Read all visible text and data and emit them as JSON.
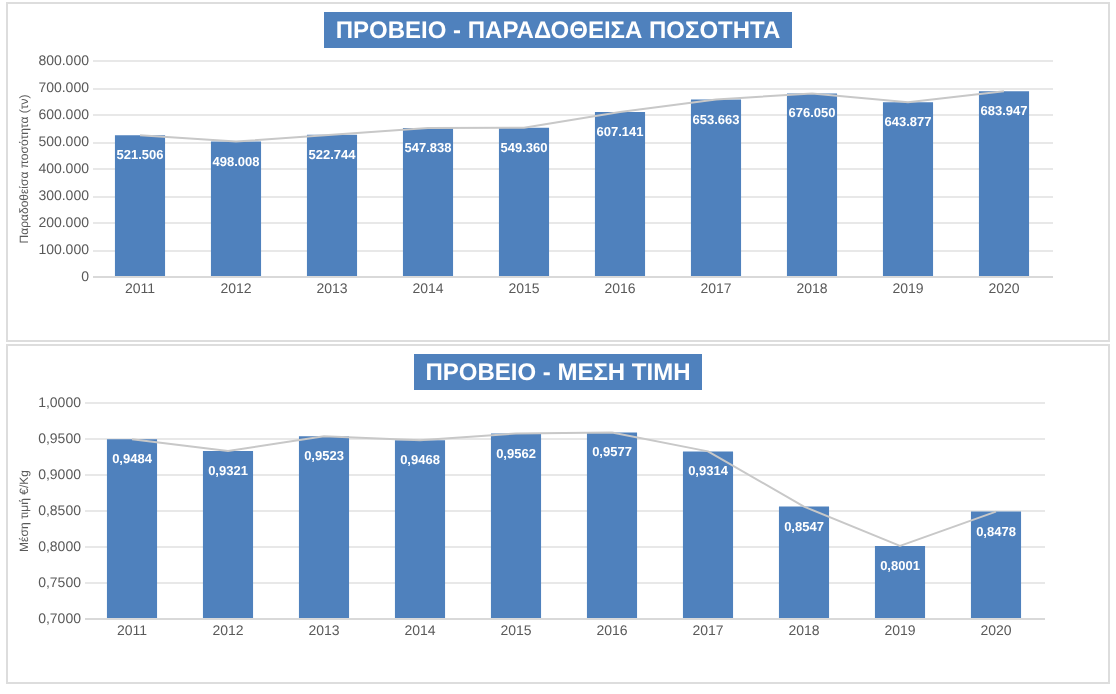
{
  "chart_data": [
    {
      "type": "bar",
      "title": "ΠΡΟΒΕΙΟ - ΠΑΡΑΔΟΘΕΙΣΑ ΠΟΣΟΤΗΤΑ",
      "ylabel": "Παραδοθείσα ποσότητα (τν)",
      "categories": [
        "2011",
        "2012",
        "2013",
        "2014",
        "2015",
        "2016",
        "2017",
        "2018",
        "2019",
        "2020"
      ],
      "series": [
        {
          "color": "#4f81bd",
          "values": [
            521506,
            498008,
            522744,
            547838,
            549360,
            607141,
            653663,
            676050,
            643877,
            683947
          ],
          "value_labels": [
            "521.506",
            "498.008",
            "522.744",
            "547.838",
            "549.360",
            "607.141",
            "653.663",
            "676.050",
            "643.877",
            "683.947"
          ]
        },
        {
          "type": "line",
          "color": "#c8c8c8",
          "values": [
            521506,
            498008,
            522744,
            547838,
            549360,
            607141,
            653663,
            676050,
            643877,
            683947
          ]
        }
      ],
      "ylim": [
        0,
        800000
      ],
      "yticks": [
        0,
        {
          "value": 100000,
          "label": "100.000"
        },
        {
          "value": 200000,
          "label": "200.000"
        },
        {
          "value": 300000,
          "label": "300.000"
        },
        {
          "value": 400000,
          "label": "400.000"
        },
        {
          "value": 500000,
          "label": "500.000"
        },
        {
          "value": 600000,
          "label": "600.000"
        },
        {
          "value": 700000,
          "label": "700.000"
        },
        {
          "value": 800000,
          "label": "800.000"
        }
      ],
      "grid": "y",
      "marker": "none"
    },
    {
      "type": "bar",
      "title": "ΠΡΟΒΕΙΟ - ΜΕΣΗ ΤΙΜΗ",
      "ylabel": "Μέση τιμή €/Kg",
      "categories": [
        "2011",
        "2012",
        "2013",
        "2014",
        "2015",
        "2016",
        "2017",
        "2018",
        "2019",
        "2020"
      ],
      "series": [
        {
          "color": "#4f81bd",
          "values": [
            0.9484,
            0.9321,
            0.9523,
            0.9468,
            0.9562,
            0.9577,
            0.9314,
            0.8547,
            0.8001,
            0.8478
          ],
          "value_labels": [
            "0,9484",
            "0,9321",
            "0,9523",
            "0,9468",
            "0,9562",
            "0,9577",
            "0,9314",
            "0,8547",
            "0,8001",
            "0,8478"
          ]
        },
        {
          "type": "line",
          "color": "#c8c8c8",
          "values": [
            0.9484,
            0.9321,
            0.9523,
            0.9468,
            0.9562,
            0.9577,
            0.9314,
            0.8547,
            0.8001,
            0.8478
          ]
        }
      ],
      "ylim": [
        0.7,
        1.0
      ],
      "yticks": [
        {
          "value": 0.7,
          "label": "0,7000"
        },
        {
          "value": 0.75,
          "label": "0,7500"
        },
        {
          "value": 0.8,
          "label": "0,8000"
        },
        {
          "value": 0.85,
          "label": "0,8500"
        },
        {
          "value": 0.9,
          "label": "0,9000"
        },
        {
          "value": 0.95,
          "label": "0,9500"
        },
        {
          "value": 1.0,
          "label": "1,0000"
        }
      ],
      "grid": "y",
      "marker": "none"
    }
  ]
}
